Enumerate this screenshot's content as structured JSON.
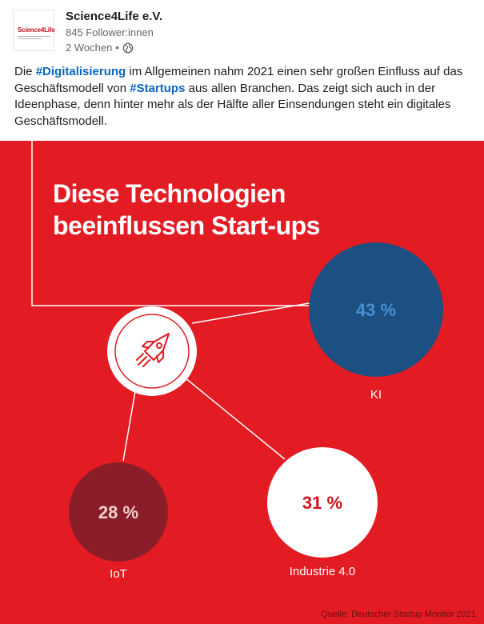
{
  "post": {
    "author": "Science4Life e.V.",
    "followers": "845 Follower:innen",
    "time": "2 Wochen",
    "separator": "•",
    "logo_text": "Science4Life",
    "text": {
      "p1": "Die ",
      "tag1": "#Digitalisierung",
      "p2": " im Allgemeinen nahm 2021 einen sehr großen Einfluss auf das Geschäftsmodell von ",
      "tag2": "#Startups",
      "p3": " aus allen Branchen. Das zeigt sich auch in der Ideenphase, denn hinter mehr als der Hälfte aller Einsendungen steht ein digitales Geschäftsmodell."
    }
  },
  "graphic": {
    "title_line1": "Diese Technologien",
    "title_line2": "beeinflussen Start-ups",
    "source": "Quelle: Deutscher Startup Monitor 2021",
    "center_icon": "rocket-icon",
    "colors": {
      "background": "#e31b23",
      "ki": "#1c4f82",
      "ki_text": "#4a8fd0",
      "iot": "#8a1e28",
      "industrie": "#ffffff",
      "industrie_text": "#d0111b"
    }
  },
  "chart_data": {
    "type": "bubble",
    "categories": [
      "KI",
      "Industrie 4.0",
      "IoT"
    ],
    "values": [
      43,
      31,
      28
    ],
    "value_labels": [
      "43 %",
      "31 %",
      "28 %"
    ],
    "unit": "%",
    "title": "Diese Technologien beeinflussen Start-ups",
    "source": "Quelle: Deutscher Startup Monitor 2021"
  }
}
